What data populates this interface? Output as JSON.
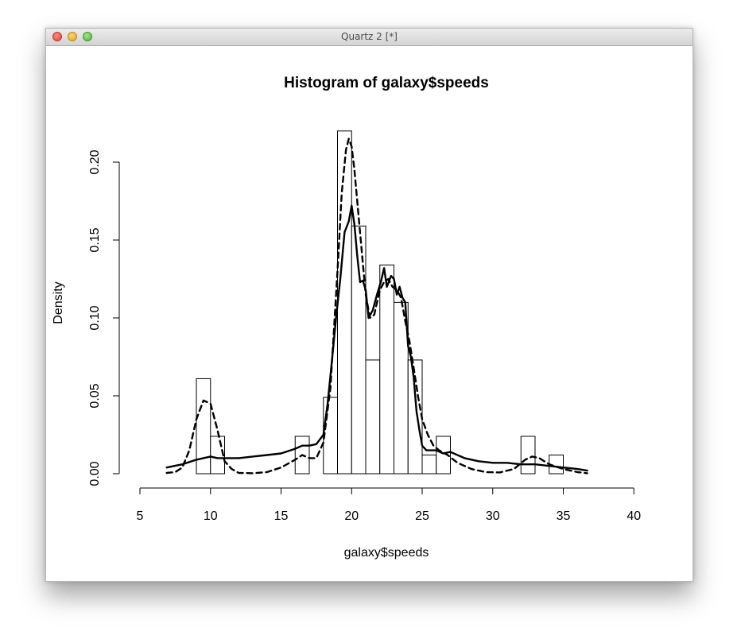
{
  "window": {
    "title": "Quartz 2 [*]"
  },
  "chart_data": {
    "type": "bar",
    "title": "Histogram of galaxy$speeds",
    "xlabel": "galaxy$speeds",
    "ylabel": "Density",
    "xlim": [
      5,
      40
    ],
    "ylim": [
      0,
      0.22
    ],
    "x_ticks": [
      5,
      10,
      15,
      20,
      25,
      30,
      35,
      40
    ],
    "x_tick_labels": [
      "5",
      "10",
      "15",
      "20",
      "25",
      "30",
      "35",
      "40"
    ],
    "y_ticks": [
      0,
      0.05,
      0.1,
      0.15,
      0.2
    ],
    "y_tick_labels": [
      "0.00",
      "0.05",
      "0.10",
      "0.15",
      "0.20"
    ],
    "grid": false,
    "histogram": {
      "bin_width": 1,
      "bins": [
        {
          "x0": 9,
          "x1": 10,
          "density": 0.061
        },
        {
          "x0": 10,
          "x1": 11,
          "density": 0.024
        },
        {
          "x0": 16,
          "x1": 17,
          "density": 0.024
        },
        {
          "x0": 18,
          "x1": 19,
          "density": 0.049
        },
        {
          "x0": 19,
          "x1": 20,
          "density": 0.22
        },
        {
          "x0": 20,
          "x1": 21,
          "density": 0.159
        },
        {
          "x0": 21,
          "x1": 22,
          "density": 0.073
        },
        {
          "x0": 22,
          "x1": 23,
          "density": 0.134
        },
        {
          "x0": 23,
          "x1": 24,
          "density": 0.11
        },
        {
          "x0": 24,
          "x1": 25,
          "density": 0.073
        },
        {
          "x0": 25,
          "x1": 26,
          "density": 0.012
        },
        {
          "x0": 26,
          "x1": 27,
          "density": 0.024
        },
        {
          "x0": 32,
          "x1": 33,
          "density": 0.024
        },
        {
          "x0": 34,
          "x1": 35,
          "density": 0.012
        }
      ]
    },
    "series": [
      {
        "style": "solid",
        "x": [
          6.9,
          8,
          9,
          9.5,
          10,
          10.5,
          11,
          12,
          13,
          14,
          15,
          16,
          16.5,
          17,
          17.5,
          18,
          18.3,
          18.6,
          18.9,
          19.2,
          19.5,
          19.8,
          20.0,
          20.2,
          20.4,
          20.6,
          20.8,
          21.0,
          21.2,
          21.5,
          21.8,
          22.1,
          22.3,
          22.5,
          22.8,
          23.0,
          23.2,
          23.4,
          23.6,
          23.8,
          24.0,
          24.2,
          24.4,
          24.6,
          24.8,
          25.0,
          25.3,
          25.6,
          26,
          26.5,
          27,
          27.5,
          28,
          29,
          30,
          31,
          32,
          33,
          34,
          35,
          36,
          36.7
        ],
        "y": [
          0.004,
          0.006,
          0.009,
          0.01,
          0.011,
          0.01,
          0.01,
          0.01,
          0.011,
          0.012,
          0.013,
          0.016,
          0.018,
          0.018,
          0.019,
          0.025,
          0.045,
          0.072,
          0.1,
          0.125,
          0.155,
          0.162,
          0.172,
          0.16,
          0.14,
          0.123,
          0.124,
          0.118,
          0.1,
          0.105,
          0.115,
          0.124,
          0.132,
          0.12,
          0.127,
          0.125,
          0.115,
          0.12,
          0.113,
          0.11,
          0.082,
          0.075,
          0.062,
          0.04,
          0.028,
          0.018,
          0.015,
          0.015,
          0.015,
          0.013,
          0.014,
          0.012,
          0.01,
          0.008,
          0.007,
          0.007,
          0.006,
          0.006,
          0.005,
          0.004,
          0.003,
          0.002
        ]
      },
      {
        "style": "dashed",
        "x": [
          6.9,
          7.5,
          8,
          8.5,
          9,
          9.5,
          10,
          10.5,
          11,
          11.5,
          12,
          13,
          14,
          15,
          16,
          16.5,
          17,
          17.5,
          18,
          18.5,
          19,
          19.3,
          19.6,
          19.8,
          20.0,
          20.2,
          20.5,
          20.8,
          21.0,
          21.3,
          21.6,
          22.0,
          22.3,
          22.6,
          22.9,
          23.2,
          23.5,
          23.8,
          24.1,
          24.4,
          24.7,
          25.0,
          25.4,
          25.8,
          26.2,
          26.8,
          27.5,
          28.5,
          29.5,
          30.5,
          31.5,
          32.3,
          32.8,
          33.3,
          34,
          35,
          36,
          36.7
        ],
        "y": [
          0.0005,
          0.001,
          0.004,
          0.015,
          0.035,
          0.047,
          0.045,
          0.028,
          0.008,
          0.003,
          0.0005,
          0.0003,
          0.001,
          0.004,
          0.009,
          0.012,
          0.01,
          0.01,
          0.02,
          0.055,
          0.13,
          0.18,
          0.208,
          0.215,
          0.21,
          0.195,
          0.165,
          0.135,
          0.115,
          0.1,
          0.102,
          0.118,
          0.123,
          0.125,
          0.12,
          0.118,
          0.113,
          0.098,
          0.085,
          0.068,
          0.05,
          0.035,
          0.025,
          0.018,
          0.015,
          0.012,
          0.007,
          0.003,
          0.001,
          0.0008,
          0.003,
          0.009,
          0.011,
          0.01,
          0.006,
          0.003,
          0.001,
          0.0003
        ]
      }
    ]
  }
}
